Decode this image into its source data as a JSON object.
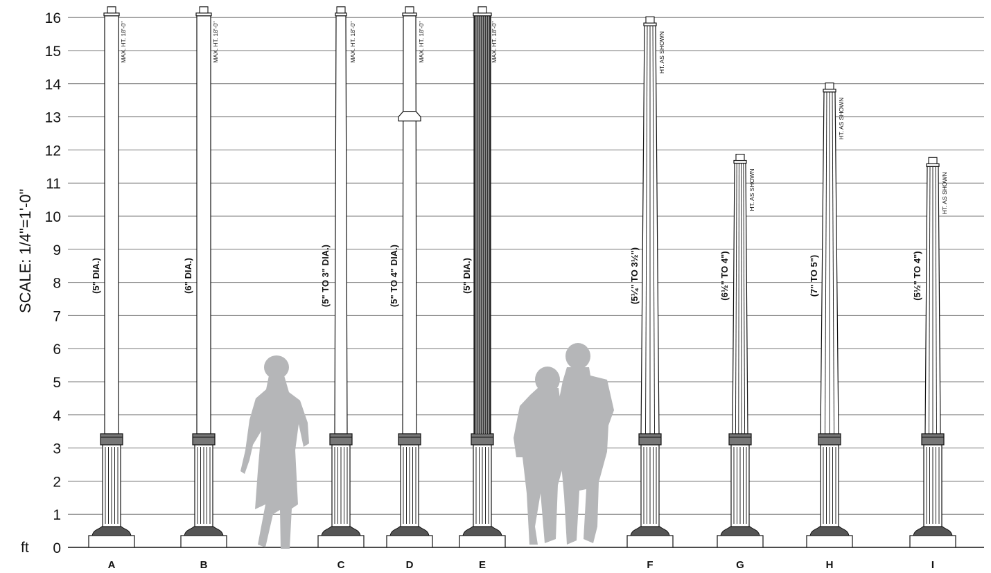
{
  "scale_label": "SCALE:  1/4\"=1'-0\"",
  "unit_label": "ft",
  "y_ticks": [
    "0",
    "1",
    "2",
    "3",
    "4",
    "5",
    "6",
    "7",
    "8",
    "9",
    "10",
    "11",
    "12",
    "13",
    "14",
    "15",
    "16"
  ],
  "colors": {
    "line": "#111111",
    "grid": "#777777",
    "silhouette": "#b5b6b8",
    "fill": "#ffffff"
  },
  "poles": [
    {
      "letter": "A",
      "dia": "(5\" DIA.)",
      "height_label": "MAX. HT.  18'-0\"",
      "top_ft": 16.05,
      "style": "smooth-ext"
    },
    {
      "letter": "B",
      "dia": "(6\" DIA.)",
      "height_label": "MAX. HT.  18'-0\"",
      "top_ft": 16.05,
      "style": "smooth-ext"
    },
    {
      "letter": "C",
      "dia": "(5\" TO 3\" DIA.)",
      "height_label": "MAX. HT.  18'-0\"",
      "top_ft": 16.05,
      "style": "tapered-ext"
    },
    {
      "letter": "D",
      "dia": "(5\" TO 4\" DIA.)",
      "height_label": "MAX. HT.  18'-0\"",
      "top_ft": 16.05,
      "style": "collar-ext"
    },
    {
      "letter": "E",
      "dia": "(5\" DIA.)",
      "height_label": "MAX. HT.  18'-0\"",
      "top_ft": 16.05,
      "style": "fluted-ext"
    },
    {
      "letter": "F",
      "dia": "(5¼\" TO 3½\")",
      "height_label": "HT.  AS SHOWN",
      "top_ft": 15.75,
      "style": "fluted"
    },
    {
      "letter": "G",
      "dia": "(6½\" TO 4\")",
      "height_label": "HT.  AS SHOWN",
      "top_ft": 11.6,
      "style": "fluted-dark"
    },
    {
      "letter": "H",
      "dia": "(7\" TO 5\")",
      "height_label": "HT.  AS SHOWN",
      "top_ft": 13.75,
      "style": "fluted"
    },
    {
      "letter": "I",
      "dia": "(5½\" TO 4\")",
      "height_label": "HT.  AS SHOWN",
      "top_ft": 11.5,
      "style": "fluted-light"
    }
  ]
}
